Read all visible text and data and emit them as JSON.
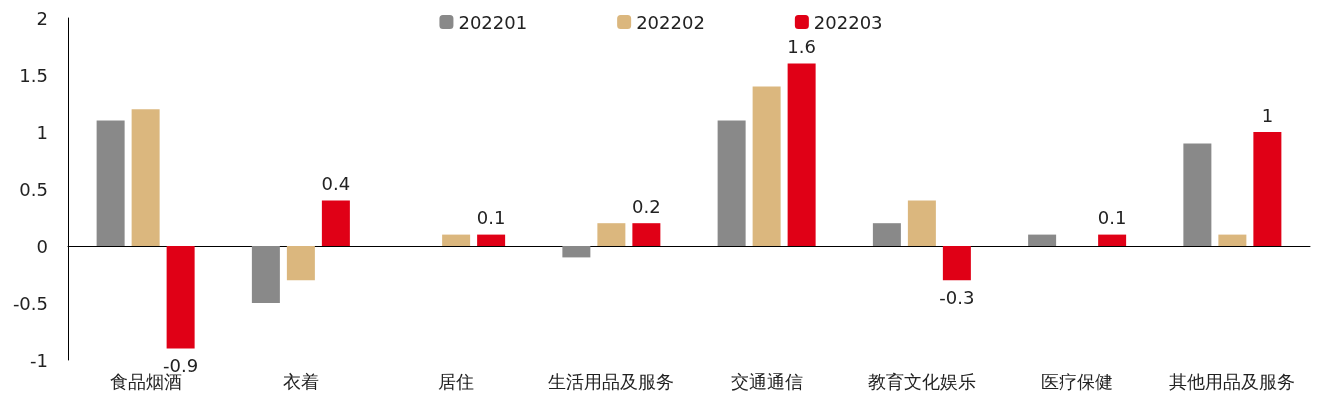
{
  "chart_data": {
    "type": "bar",
    "categories": [
      "食品烟酒",
      "衣着",
      "居住",
      "生活用品及服务",
      "交通通信",
      "教育文化娱乐",
      "医疗保健",
      "其他用品及服务"
    ],
    "series": [
      {
        "name": "202201",
        "color": "#898989",
        "values": [
          1.1,
          -0.5,
          0,
          -0.1,
          1.1,
          0.2,
          0.1,
          0.9
        ]
      },
      {
        "name": "202202",
        "color": "#dbb77e",
        "values": [
          1.2,
          -0.3,
          0.1,
          0.2,
          1.4,
          0.4,
          0,
          0.1
        ]
      },
      {
        "name": "202203",
        "color": "#e00016",
        "values": [
          -0.9,
          0.4,
          0.1,
          0.2,
          1.6,
          -0.3,
          0.1,
          1
        ],
        "value_labels": [
          "-0.9",
          "0.4",
          "0.1",
          "0.2",
          "1.6",
          "-0.3",
          "0.1",
          "1"
        ]
      }
    ],
    "ylim": [
      -1,
      2
    ],
    "yticks": [
      -1,
      -0.5,
      0,
      0.5,
      1,
      1.5,
      2
    ],
    "legend": "top"
  }
}
